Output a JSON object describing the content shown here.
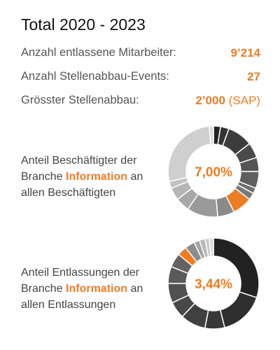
{
  "title": "Total 2020 - 2023",
  "stats": [
    {
      "label": "Anzahl entlassene Mitarbeiter:",
      "value": "9’214",
      "note": ""
    },
    {
      "label": "Anzahl Stellenabbau-Events:",
      "value": "27",
      "note": ""
    },
    {
      "label": "Grösster Stellenabbau:",
      "value": "2’000",
      "note": "(SAP)"
    }
  ],
  "colors": {
    "accent": "#ee7c22",
    "text": "#555555",
    "title": "#111111"
  },
  "chart_data": [
    {
      "type": "pie",
      "variant": "donut",
      "description_before": "Anteil Beschäftigter der Branche ",
      "description_highlight": "Information",
      "description_after": " an allen Beschäftigten",
      "center_label": "7,00%",
      "highlight_value": 7.0,
      "slices": [
        {
          "value": 2.5,
          "color": "#222222"
        },
        {
          "value": 3.0,
          "color": "#333333"
        },
        {
          "value": 9.0,
          "color": "#3c3c3c"
        },
        {
          "value": 5.5,
          "color": "#4a4a4a"
        },
        {
          "value": 5.0,
          "color": "#555555"
        },
        {
          "value": 6.0,
          "color": "#5f5f5f"
        },
        {
          "value": 2.0,
          "color": "#6e6e6e"
        },
        {
          "value": 2.5,
          "color": "#7a7a7a"
        },
        {
          "value": 7.0,
          "color": "#ee7c22"
        },
        {
          "value": 6.0,
          "color": "#8a8a8a"
        },
        {
          "value": 11.0,
          "color": "#9a9a9a"
        },
        {
          "value": 5.0,
          "color": "#a8a8a8"
        },
        {
          "value": 4.5,
          "color": "#b5b5b5"
        },
        {
          "value": 2.5,
          "color": "#c2c2c2"
        },
        {
          "value": 27.0,
          "color": "#cfcfcf"
        },
        {
          "value": 1.5,
          "color": "#dadada"
        }
      ]
    },
    {
      "type": "pie",
      "variant": "donut",
      "description_before": "Anteil Entlassungen der Branche ",
      "description_highlight": "Information",
      "description_after": " an allen Entlassungen",
      "center_label": "3,44%",
      "highlight_value": 3.44,
      "slices": [
        {
          "value": 30.0,
          "color": "#222222"
        },
        {
          "value": 16.0,
          "color": "#2f2f2f"
        },
        {
          "value": 7.0,
          "color": "#383838"
        },
        {
          "value": 9.0,
          "color": "#404040"
        },
        {
          "value": 6.0,
          "color": "#484848"
        },
        {
          "value": 7.0,
          "color": "#515151"
        },
        {
          "value": 6.0,
          "color": "#5a5a5a"
        },
        {
          "value": 5.0,
          "color": "#636363"
        },
        {
          "value": 3.44,
          "color": "#ee7c22"
        },
        {
          "value": 3.5,
          "color": "#8c8c8c"
        },
        {
          "value": 2.0,
          "color": "#a4a4a4"
        },
        {
          "value": 2.0,
          "color": "#b8b8b8"
        },
        {
          "value": 1.5,
          "color": "#cacaca"
        },
        {
          "value": 1.5,
          "color": "#d9d9d9"
        }
      ]
    }
  ]
}
